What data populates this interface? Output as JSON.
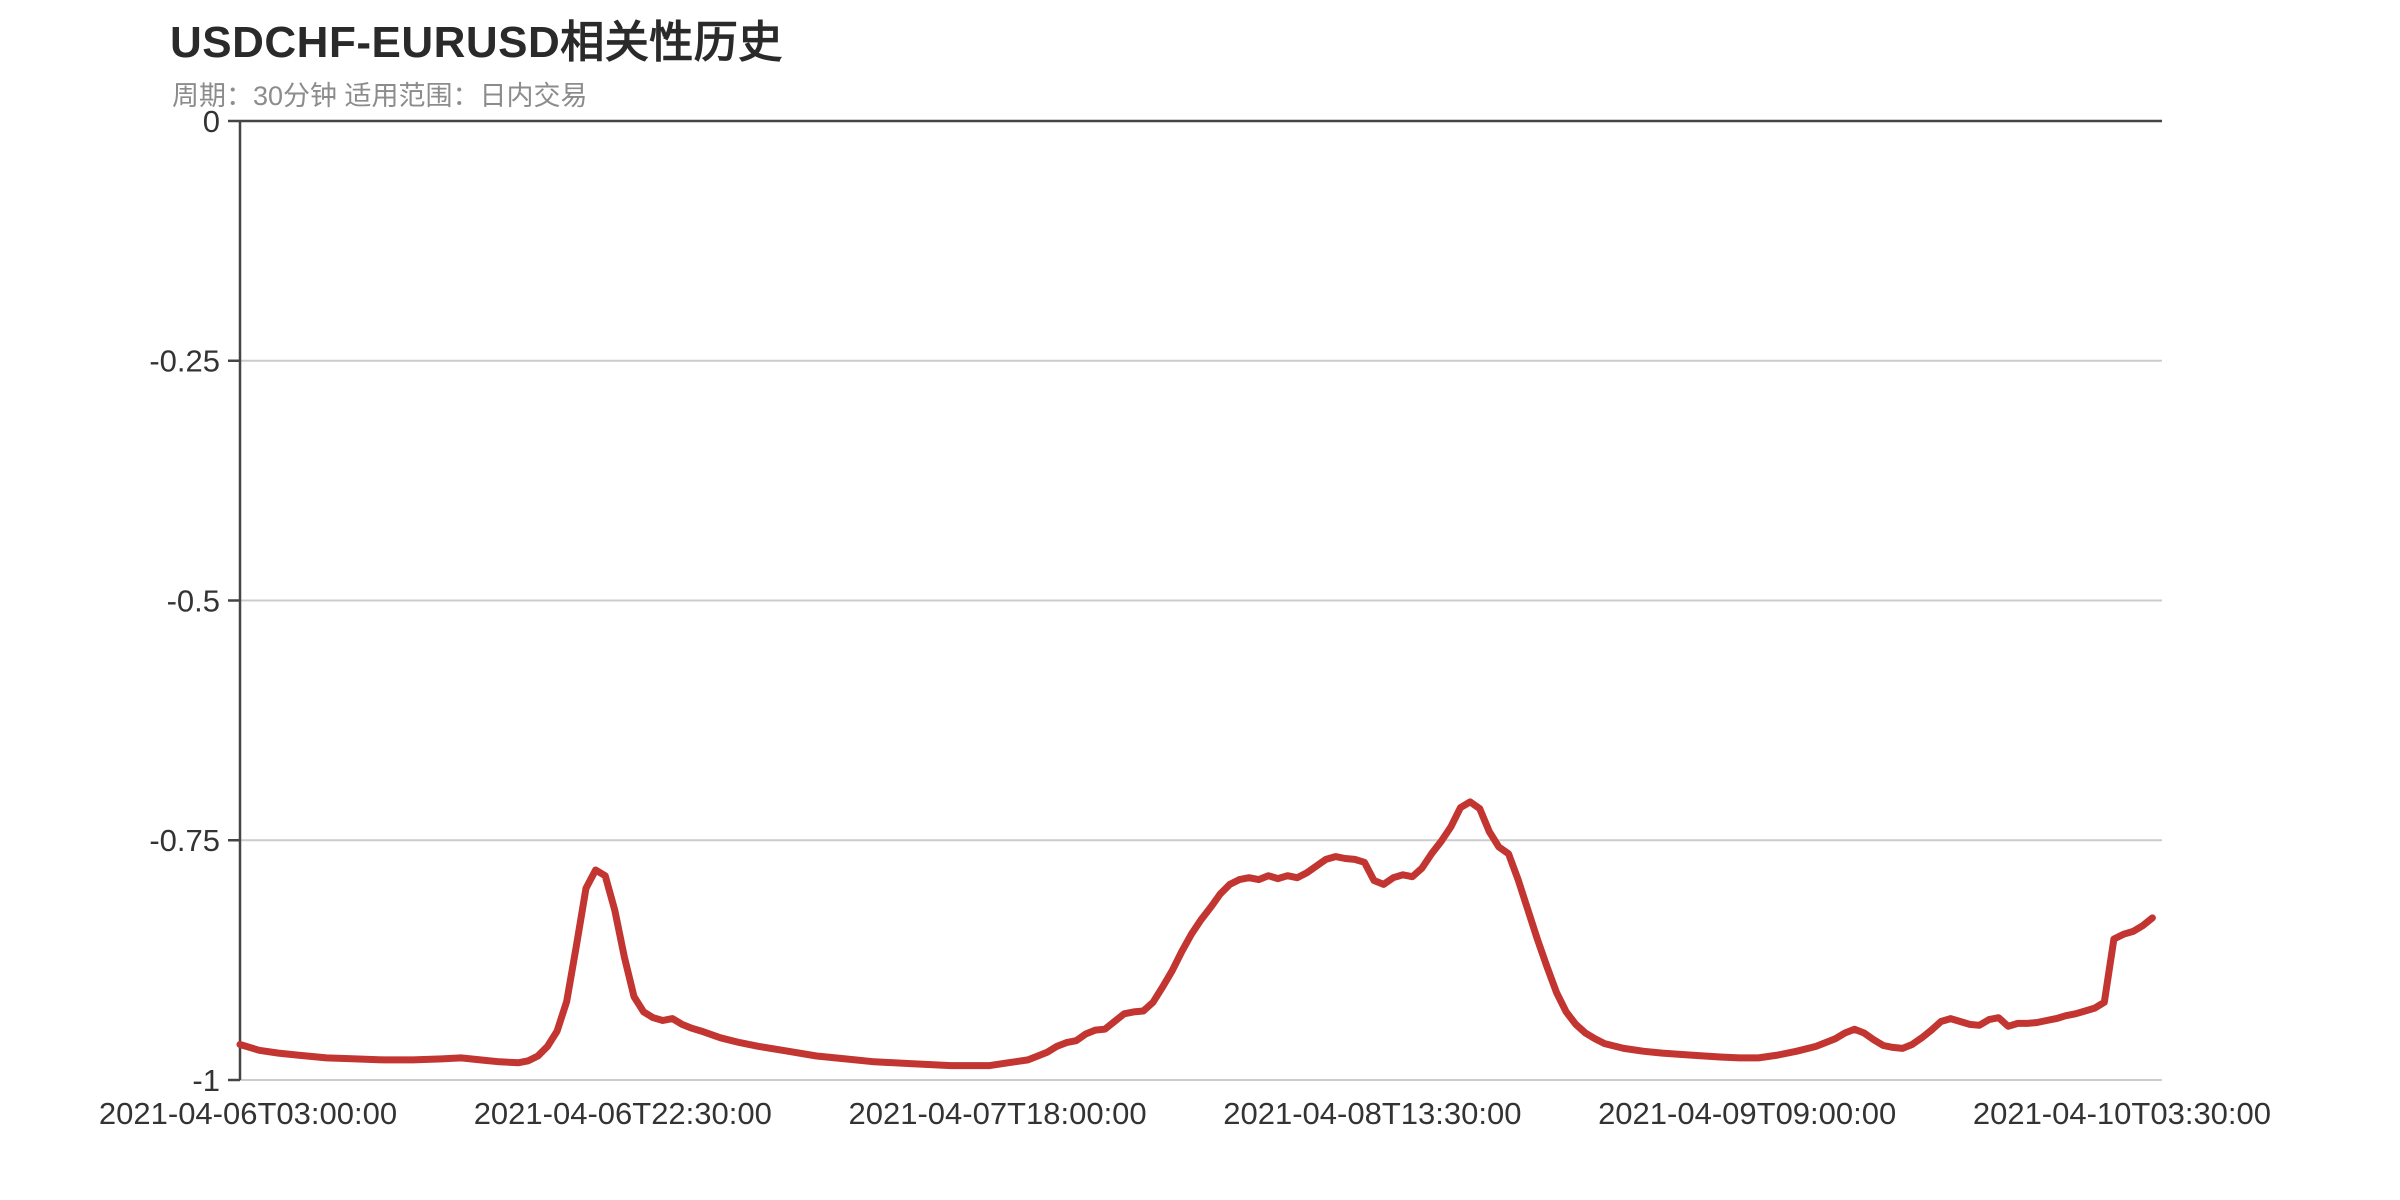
{
  "chart_data": {
    "type": "line",
    "title": "USDCHF-EURUSD相关性历史",
    "subtitle": "周期：30分钟 适用范围：日内交易",
    "legend_shown": false,
    "grid": true,
    "x_axis": {
      "type": "category",
      "unit": "30-minute bars",
      "total_points": 200,
      "ticks": [
        {
          "index": 0,
          "label": "2021-04-06T03:00:00"
        },
        {
          "index": 39,
          "label": "2021-04-06T22:30:00"
        },
        {
          "index": 78,
          "label": "2021-04-07T18:00:00"
        },
        {
          "index": 117,
          "label": "2021-04-08T13:30:00"
        },
        {
          "index": 156,
          "label": "2021-04-09T09:00:00"
        },
        {
          "index": 195,
          "label": "2021-04-10T03:30:00"
        }
      ]
    },
    "y_axis": {
      "min": -1,
      "max": 0,
      "ticks": [
        0,
        -0.25,
        -0.5,
        -0.75,
        -1
      ],
      "tick_labels": [
        "0",
        "-0.25",
        "-0.5",
        "-0.75",
        "-1"
      ]
    },
    "series": [
      {
        "name": "USDCHF-EURUSD相关性",
        "color": "#c23531",
        "points": [
          [
            0,
            -0.963
          ],
          [
            2,
            -0.969
          ],
          [
            4,
            -0.972
          ],
          [
            6,
            -0.974
          ],
          [
            9,
            -0.977
          ],
          [
            12,
            -0.978
          ],
          [
            15,
            -0.979
          ],
          [
            18,
            -0.979
          ],
          [
            21,
            -0.978
          ],
          [
            23,
            -0.977
          ],
          [
            25,
            -0.979
          ],
          [
            27,
            -0.981
          ],
          [
            29,
            -0.982
          ],
          [
            30,
            -0.98
          ],
          [
            31,
            -0.975
          ],
          [
            32,
            -0.965
          ],
          [
            33,
            -0.949
          ],
          [
            34,
            -0.918
          ],
          [
            35,
            -0.86
          ],
          [
            36,
            -0.8
          ],
          [
            37,
            -0.781
          ],
          [
            38,
            -0.787
          ],
          [
            39,
            -0.823
          ],
          [
            40,
            -0.872
          ],
          [
            41,
            -0.913
          ],
          [
            42,
            -0.929
          ],
          [
            43,
            -0.935
          ],
          [
            44,
            -0.938
          ],
          [
            45,
            -0.936
          ],
          [
            46,
            -0.942
          ],
          [
            47,
            -0.946
          ],
          [
            48,
            -0.949
          ],
          [
            50,
            -0.956
          ],
          [
            52,
            -0.961
          ],
          [
            54,
            -0.965
          ],
          [
            57,
            -0.97
          ],
          [
            60,
            -0.975
          ],
          [
            63,
            -0.978
          ],
          [
            66,
            -0.981
          ],
          [
            70,
            -0.983
          ],
          [
            74,
            -0.985
          ],
          [
            78,
            -0.985
          ],
          [
            80,
            -0.982
          ],
          [
            82,
            -0.979
          ],
          [
            84,
            -0.971
          ],
          [
            85,
            -0.965
          ],
          [
            86,
            -0.961
          ],
          [
            87,
            -0.959
          ],
          [
            88,
            -0.952
          ],
          [
            89,
            -0.948
          ],
          [
            90,
            -0.947
          ],
          [
            91,
            -0.939
          ],
          [
            92,
            -0.931
          ],
          [
            93,
            -0.929
          ],
          [
            94,
            -0.928
          ],
          [
            95,
            -0.919
          ],
          [
            96,
            -0.903
          ],
          [
            97,
            -0.886
          ],
          [
            98,
            -0.866
          ],
          [
            99,
            -0.848
          ],
          [
            100,
            -0.833
          ],
          [
            101,
            -0.82
          ],
          [
            102,
            -0.806
          ],
          [
            103,
            -0.796
          ],
          [
            104,
            -0.791
          ],
          [
            105,
            -0.789
          ],
          [
            106,
            -0.791
          ],
          [
            107,
            -0.787
          ],
          [
            108,
            -0.79
          ],
          [
            109,
            -0.787
          ],
          [
            110,
            -0.789
          ],
          [
            111,
            -0.784
          ],
          [
            112,
            -0.777
          ],
          [
            113,
            -0.77
          ],
          [
            114,
            -0.767
          ],
          [
            115,
            -0.769
          ],
          [
            116,
            -0.77
          ],
          [
            117,
            -0.773
          ],
          [
            118,
            -0.792
          ],
          [
            119,
            -0.796
          ],
          [
            120,
            -0.789
          ],
          [
            121,
            -0.786
          ],
          [
            122,
            -0.788
          ],
          [
            123,
            -0.779
          ],
          [
            124,
            -0.764
          ],
          [
            125,
            -0.751
          ],
          [
            126,
            -0.736
          ],
          [
            127,
            -0.716
          ],
          [
            128,
            -0.71
          ],
          [
            129,
            -0.717
          ],
          [
            130,
            -0.741
          ],
          [
            131,
            -0.757
          ],
          [
            132,
            -0.764
          ],
          [
            133,
            -0.791
          ],
          [
            134,
            -0.822
          ],
          [
            135,
            -0.853
          ],
          [
            136,
            -0.882
          ],
          [
            137,
            -0.909
          ],
          [
            138,
            -0.929
          ],
          [
            139,
            -0.942
          ],
          [
            140,
            -0.951
          ],
          [
            141,
            -0.957
          ],
          [
            142,
            -0.962
          ],
          [
            144,
            -0.967
          ],
          [
            146,
            -0.97
          ],
          [
            148,
            -0.972
          ],
          [
            151,
            -0.974
          ],
          [
            154,
            -0.976
          ],
          [
            156,
            -0.977
          ],
          [
            158,
            -0.977
          ],
          [
            160,
            -0.974
          ],
          [
            162,
            -0.97
          ],
          [
            164,
            -0.965
          ],
          [
            166,
            -0.957
          ],
          [
            167,
            -0.951
          ],
          [
            168,
            -0.947
          ],
          [
            169,
            -0.951
          ],
          [
            170,
            -0.958
          ],
          [
            171,
            -0.964
          ],
          [
            172,
            -0.966
          ],
          [
            173,
            -0.967
          ],
          [
            174,
            -0.963
          ],
          [
            175,
            -0.956
          ],
          [
            176,
            -0.948
          ],
          [
            177,
            -0.939
          ],
          [
            178,
            -0.936
          ],
          [
            179,
            -0.939
          ],
          [
            180,
            -0.942
          ],
          [
            181,
            -0.943
          ],
          [
            182,
            -0.937
          ],
          [
            183,
            -0.935
          ],
          [
            184,
            -0.944
          ],
          [
            185,
            -0.941
          ],
          [
            186,
            -0.941
          ],
          [
            187,
            -0.94
          ],
          [
            188,
            -0.938
          ],
          [
            189,
            -0.936
          ],
          [
            190,
            -0.933
          ],
          [
            191,
            -0.931
          ],
          [
            192,
            -0.928
          ],
          [
            193,
            -0.925
          ],
          [
            194,
            -0.919
          ],
          [
            195,
            -0.853
          ],
          [
            196,
            -0.848
          ],
          [
            197,
            -0.845
          ],
          [
            198,
            -0.839
          ],
          [
            199,
            -0.831
          ]
        ]
      }
    ],
    "colors": {
      "line": "#c23531",
      "axis_line": "#454545",
      "grid_line": "#cccccc",
      "axis_label": "#333333",
      "title": "#2a2a2a",
      "subtitle": "#8c8c8c",
      "background": "#ffffff"
    }
  }
}
